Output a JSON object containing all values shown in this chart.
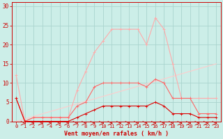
{
  "xlabel": "Vent moyen/en rafales ( km/h )",
  "bg_color": "#cceee8",
  "grid_color": "#aad4ce",
  "x_ticks": [
    0,
    1,
    2,
    3,
    4,
    5,
    6,
    7,
    8,
    9,
    10,
    11,
    12,
    13,
    14,
    15,
    16,
    17,
    18,
    19,
    20,
    21,
    22,
    23
  ],
  "ylim": [
    0,
    31
  ],
  "xlim": [
    -0.5,
    23.5
  ],
  "yticks": [
    0,
    5,
    10,
    15,
    20,
    25,
    30
  ],
  "series": [
    {
      "color": "#ffaaaa",
      "x": [
        0,
        1,
        2,
        3,
        4,
        5,
        6,
        7,
        8,
        9,
        10,
        11,
        12,
        13,
        14,
        15,
        16,
        17,
        18,
        19,
        20,
        21,
        22,
        23
      ],
      "y": [
        12,
        0,
        1,
        1,
        1,
        1,
        1,
        8,
        13,
        18,
        21,
        24,
        24,
        24,
        24,
        20,
        27,
        24,
        15,
        6,
        6,
        6,
        6,
        6
      ],
      "lw": 0.8
    },
    {
      "color": "#ff6666",
      "x": [
        0,
        1,
        2,
        3,
        4,
        5,
        6,
        7,
        8,
        9,
        10,
        11,
        12,
        13,
        14,
        15,
        16,
        17,
        18,
        19,
        20,
        21,
        22,
        23
      ],
      "y": [
        6,
        0,
        1,
        1,
        1,
        1,
        1,
        4,
        5,
        9,
        10,
        10,
        10,
        10,
        10,
        9,
        11,
        10,
        6,
        6,
        6,
        2,
        2,
        2
      ],
      "lw": 0.8
    },
    {
      "color": "#dd0000",
      "x": [
        0,
        1,
        2,
        3,
        4,
        5,
        6,
        7,
        8,
        9,
        10,
        11,
        12,
        13,
        14,
        15,
        16,
        17,
        18,
        19,
        20,
        21,
        22,
        23
      ],
      "y": [
        6,
        0,
        0,
        0,
        0,
        0,
        0,
        1,
        2,
        3,
        4,
        4,
        4,
        4,
        4,
        4,
        5,
        4,
        2,
        2,
        2,
        1,
        1,
        1
      ],
      "lw": 0.8
    },
    {
      "color": "#ffcccc",
      "x": [
        0,
        23
      ],
      "y": [
        0,
        15
      ],
      "lw": 0.8
    }
  ],
  "arrow_x_all": [
    1,
    2,
    3,
    4,
    5,
    6,
    7,
    8,
    9,
    10,
    11,
    12,
    13,
    14,
    15,
    16,
    17,
    18,
    19,
    20,
    21,
    22,
    23
  ],
  "marker_size": 2.5,
  "tick_fontsize": 5,
  "xlabel_fontsize": 6,
  "spine_color": "#cc0000",
  "tick_color": "#cc0000",
  "label_color": "#cc0000"
}
